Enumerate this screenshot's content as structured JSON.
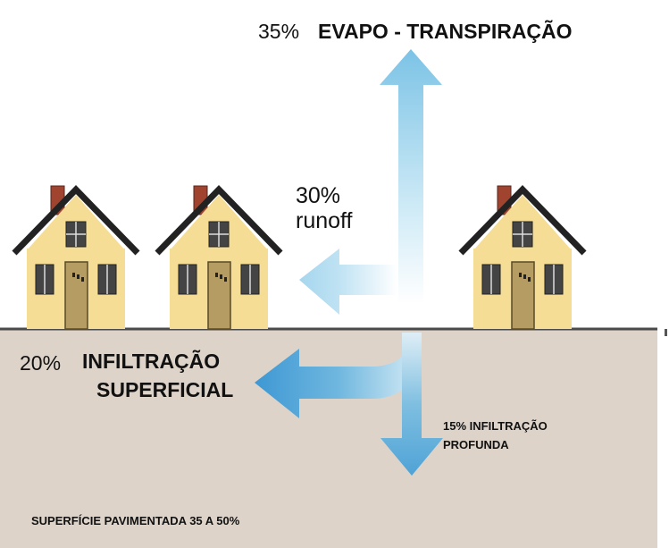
{
  "flows": [
    {
      "percent": "35%",
      "label": "EVAPO - TRANSPIRAÇÃO"
    },
    {
      "percent": "30%",
      "label": "runoff"
    },
    {
      "percent": "20%",
      "label": [
        "INFILTRAÇÃO",
        "SUPERFICIAL"
      ]
    },
    {
      "percent": "15%",
      "label": [
        "INFILTRAÇÃO",
        "PROFUNDA"
      ]
    }
  ],
  "surface": "SUPERFÍCIE PAVIMENTADA 35 A 50%"
}
